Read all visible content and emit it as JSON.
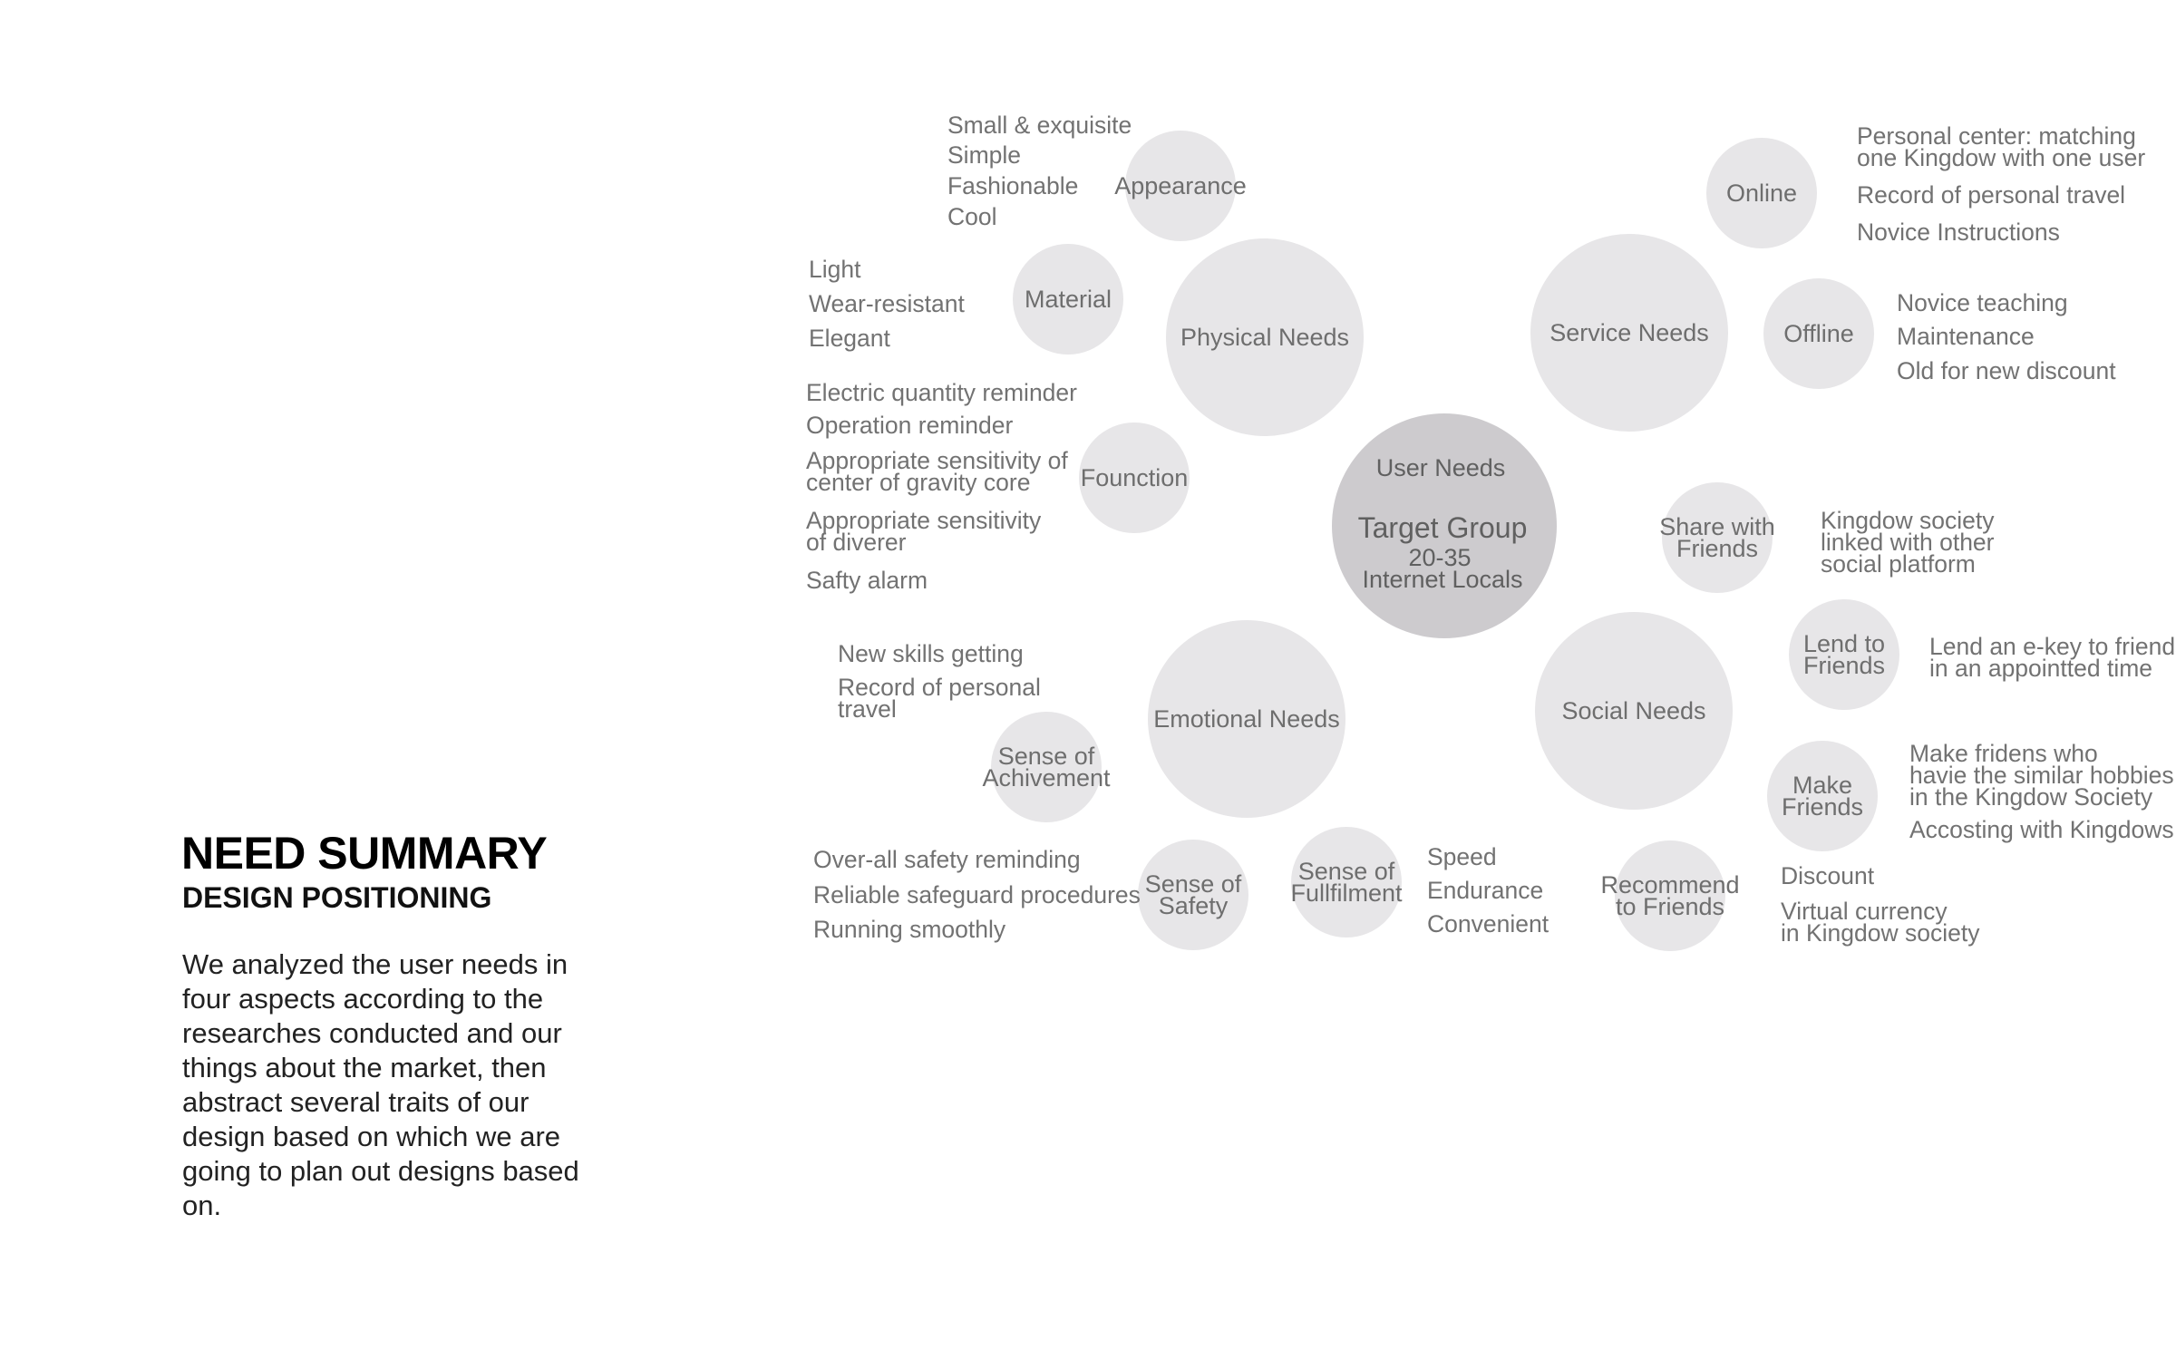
{
  "summary": {
    "title": "NEED SUMMARY",
    "subtitle": "DESIGN POSITIONING",
    "description": "We analyzed the user needs in four aspects according to the researches conducted and our things about the market, then abstract several traits of our design based on which we are going to plan out designs based on."
  },
  "center": {
    "label": "User Needs",
    "title": "Target Group",
    "lines": [
      "20-35",
      "Internet Locals"
    ]
  },
  "bubbles": [
    {
      "id": "physical-needs",
      "lines": [
        "Physical Needs"
      ]
    },
    {
      "id": "service-needs",
      "lines": [
        "Service Needs"
      ]
    },
    {
      "id": "emotional-needs",
      "lines": [
        "Emotional Needs"
      ]
    },
    {
      "id": "social-needs",
      "lines": [
        "Social Needs"
      ]
    },
    {
      "id": "appearance",
      "lines": [
        "Appearance"
      ]
    },
    {
      "id": "material",
      "lines": [
        "Material"
      ]
    },
    {
      "id": "founction",
      "lines": [
        "Founction"
      ]
    },
    {
      "id": "online",
      "lines": [
        "Online"
      ]
    },
    {
      "id": "offline",
      "lines": [
        "Offline"
      ]
    },
    {
      "id": "share-with-friends",
      "lines": [
        "Share with",
        "Friends"
      ]
    },
    {
      "id": "lend-to-friends",
      "lines": [
        "Lend to",
        "Friends"
      ]
    },
    {
      "id": "make-friends",
      "lines": [
        "Make",
        "Friends"
      ]
    },
    {
      "id": "recommend-to-friends",
      "lines": [
        "Recommend",
        "to Friends"
      ]
    },
    {
      "id": "sense-of-achivement",
      "lines": [
        "Sense of",
        "Achivement"
      ]
    },
    {
      "id": "sense-of-safety",
      "lines": [
        "Sense of",
        "Safety"
      ]
    },
    {
      "id": "sense-of-fulfilment",
      "lines": [
        "Sense of",
        "Fullfilment"
      ]
    }
  ],
  "notes": [
    {
      "id": "appearance-traits",
      "items": [
        [
          "Small & exquisite"
        ],
        [
          "Simple"
        ],
        [
          "Fashionable"
        ],
        [
          "Cool"
        ]
      ]
    },
    {
      "id": "material-traits",
      "items": [
        [
          "Light"
        ],
        [
          "Wear-resistant"
        ],
        [
          "Elegant"
        ]
      ]
    },
    {
      "id": "function-traits",
      "items": [
        [
          "Electric quantity reminder"
        ],
        [
          "Operation reminder"
        ],
        [
          "Appropriate sensitivity of",
          "center of gravity core"
        ],
        [
          "Appropriate sensitivity",
          "of diverer"
        ],
        [
          "Safty alarm"
        ]
      ]
    },
    {
      "id": "online-traits",
      "items": [
        [
          "Personal center: matching",
          "one Kingdow with one user"
        ],
        [
          "Record of personal travel"
        ],
        [
          "Novice Instructions"
        ]
      ]
    },
    {
      "id": "offline-traits",
      "items": [
        [
          "Novice teaching"
        ],
        [
          "Maintenance"
        ],
        [
          "Old for new discount"
        ]
      ]
    },
    {
      "id": "share-traits",
      "items": [
        [
          "Kingdow society",
          "linked with other",
          "social platform"
        ]
      ]
    },
    {
      "id": "lend-traits",
      "items": [
        [
          "Lend an e-key to friends",
          "in an appointted time"
        ]
      ]
    },
    {
      "id": "make-friends-traits",
      "items": [
        [
          "Make fridens who",
          "havie the similar hobbies",
          "in the Kingdow Society"
        ],
        [
          "Accosting with Kingdows"
        ]
      ]
    },
    {
      "id": "recommend-traits",
      "items": [
        [
          "Discount"
        ],
        [
          "Virtual currency",
          "in Kingdow society"
        ]
      ]
    },
    {
      "id": "achivement-traits",
      "items": [
        [
          "New skills getting"
        ],
        [
          "Record of personal",
          "travel"
        ]
      ]
    },
    {
      "id": "safety-traits",
      "items": [
        [
          "Over-all safety reminding"
        ],
        [
          "Reliable safeguard procedures"
        ],
        [
          "Running smoothly"
        ]
      ]
    },
    {
      "id": "fulfilment-traits",
      "items": [
        [
          "Speed"
        ],
        [
          "Endurance"
        ],
        [
          "Convenient"
        ]
      ]
    }
  ],
  "colors": {
    "bubble": "#e7e6e8",
    "center": "#cdcbce",
    "text": "#6e6e6e"
  }
}
